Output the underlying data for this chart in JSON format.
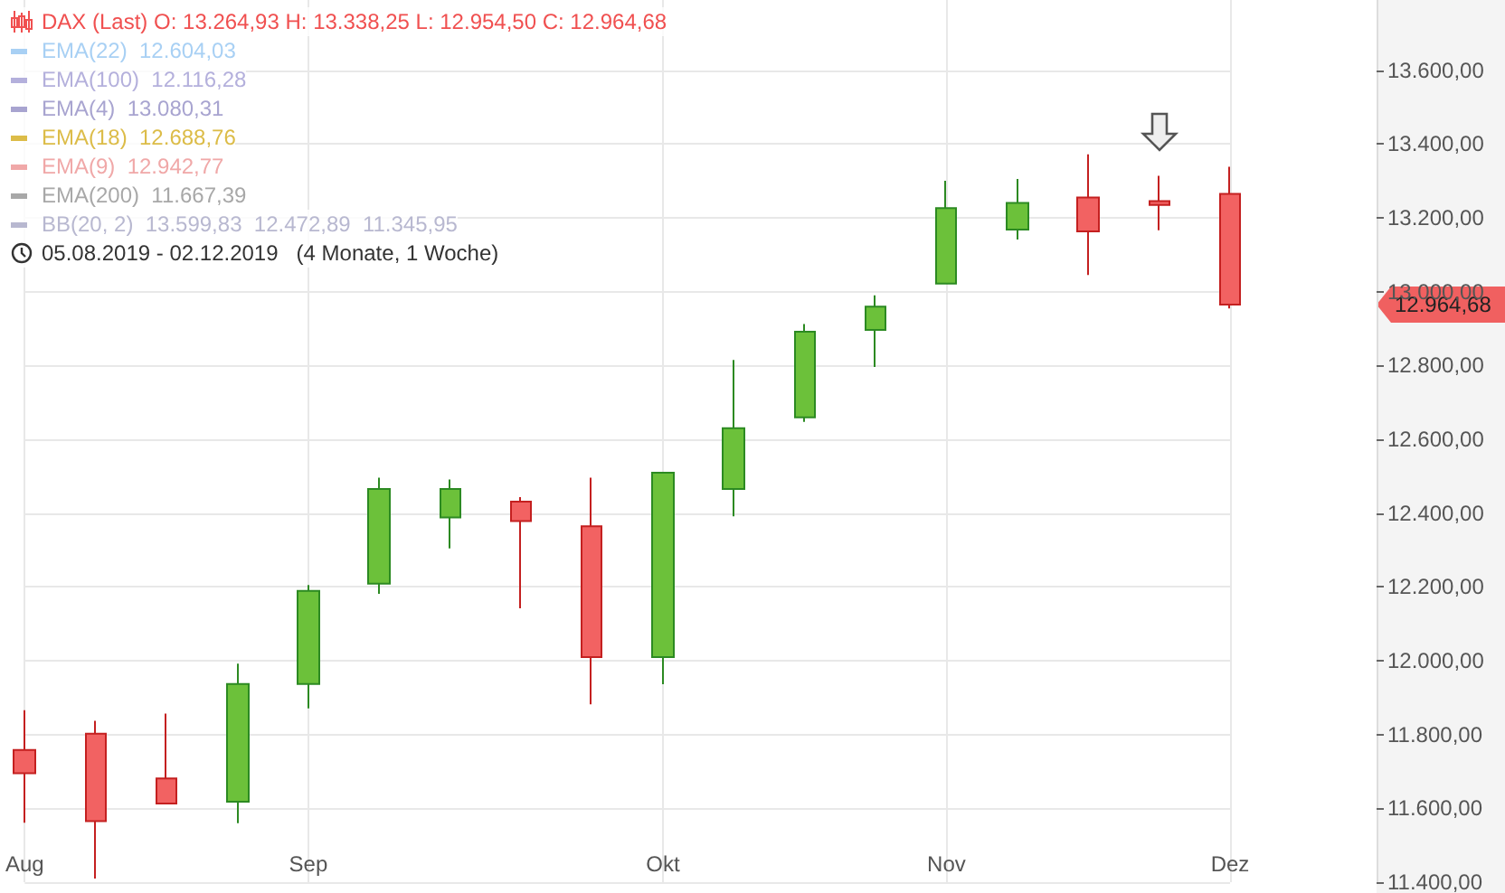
{
  "chart_data": {
    "type": "candlestick",
    "title": "DAX (Last)  O: 13.264,93  H: 13.338,25  L: 12.954,50  C: 12.964,68",
    "categories": [
      "Aug",
      null,
      null,
      null,
      "Sep",
      null,
      null,
      null,
      null,
      "Okt",
      null,
      null,
      null,
      "Nov",
      null,
      null,
      null,
      "Dez"
    ],
    "ohlc": [
      [
        11758,
        11866,
        11561,
        11695
      ],
      [
        11802,
        11837,
        11410,
        11565
      ],
      [
        11681,
        11857,
        11613,
        11613
      ],
      [
        11618,
        11992,
        11560,
        11937
      ],
      [
        11937,
        12205,
        11871,
        12189
      ],
      [
        12209,
        12496,
        12181,
        12465
      ],
      [
        12388,
        12491,
        12304,
        12465
      ],
      [
        12431,
        12443,
        12142,
        12378
      ],
      [
        12364,
        12496,
        11882,
        12010
      ],
      [
        12010,
        12509,
        11936,
        12509
      ],
      [
        12465,
        12815,
        12391,
        12630
      ],
      [
        12659,
        12912,
        12647,
        12891
      ],
      [
        12896,
        12990,
        12796,
        12959
      ],
      [
        13022,
        13300,
        13022,
        13226
      ],
      [
        13168,
        13305,
        13141,
        13240
      ],
      [
        13255,
        13372,
        13045,
        13163
      ],
      [
        13245,
        13314,
        13166,
        13235
      ],
      [
        13264.93,
        13338.25,
        12954.5,
        12964.68
      ]
    ],
    "colors": [
      "#f26262",
      "#f26262",
      "#f26262",
      "#6cc13a",
      "#6cc13a",
      "#6cc13a",
      "#6cc13a",
      "#f26262",
      "#f26262",
      "#6cc13a",
      "#6cc13a",
      "#6cc13a",
      "#6cc13a",
      "#6cc13a",
      "#6cc13a",
      "#f26262",
      "#f26262",
      "#f26262"
    ],
    "ylim": [
      11400,
      13790
    ],
    "yticks": [
      {
        "value": 11400,
        "label": "11.400,00"
      },
      {
        "value": 11600,
        "label": "11.600,00"
      },
      {
        "value": 11800,
        "label": "11.800,00"
      },
      {
        "value": 12000,
        "label": "12.000,00"
      },
      {
        "value": 12200,
        "label": "12.200,00"
      },
      {
        "value": 12400,
        "label": "12.400,00"
      },
      {
        "value": 12600,
        "label": "12.600,00"
      },
      {
        "value": 12800,
        "label": "12.800,00"
      },
      {
        "value": 13000,
        "label": "13.000,00"
      },
      {
        "value": 13200,
        "label": "13.200,00"
      },
      {
        "value": 13400,
        "label": "13.400,00"
      },
      {
        "value": 13600,
        "label": "13.600,00"
      }
    ],
    "grid": true,
    "annotations": [
      "EMA(22)  12.604,03",
      "EMA(100)  12.116,28",
      "EMA(4)  13.080,31",
      "EMA(18)  12.688,76",
      "EMA(9)  12.942,77",
      "EMA(200)  11.667,39",
      "BB(20, 2)  13.599,83  12.472,89  11.345,95",
      "05.08.2019 - 02.12.2019   (4 Monate, 1 Woche)",
      "12.964,68"
    ]
  }
}
